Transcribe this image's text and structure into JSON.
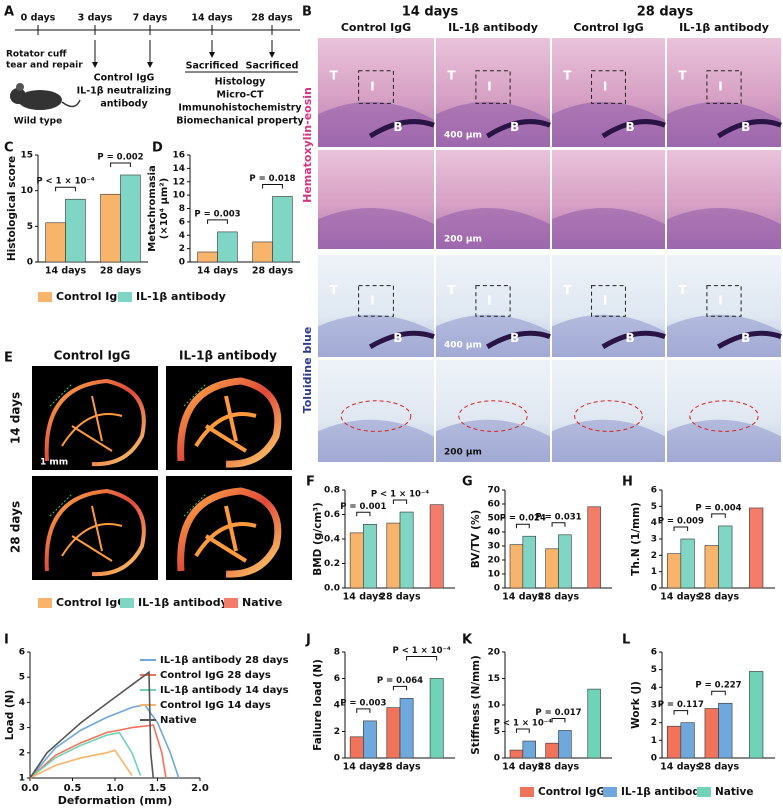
{
  "figure": {
    "panels": [
      "A",
      "B",
      "C",
      "D",
      "E",
      "F",
      "G",
      "H",
      "I",
      "J",
      "K",
      "L"
    ],
    "timeline": {
      "days": [
        "0 days",
        "3 days",
        "7 days",
        "14 days",
        "28 days"
      ],
      "surgery": [
        "Rotator cuff",
        "tear and repair"
      ],
      "mouse": "Wild type",
      "treatment": [
        "Control IgG",
        "IL-1β neutralizing",
        "antibody"
      ],
      "sacrificed": [
        "Sacrificed",
        "Sacrificed"
      ],
      "analyses": [
        "Histology",
        "Micro-CT",
        "Immunohistochemistry",
        "Biomechanical property"
      ]
    },
    "histology": {
      "timepoints": [
        "14 days",
        "28 days"
      ],
      "groups": [
        "Control IgG",
        "IL-1β antibody",
        "Control IgG",
        "IL-1β antibody"
      ],
      "stains": [
        "Hematoxylin-eosin",
        "Toluidine blue"
      ],
      "tissue_labels": [
        "T",
        "I",
        "B"
      ],
      "scale_low": "400 μm",
      "scale_high": "200 μm"
    },
    "microct": {
      "groups": [
        "Control IgG",
        "IL-1β antibody"
      ],
      "timepoints": [
        "14 days",
        "28 days"
      ],
      "scale": "1 mm"
    }
  },
  "chart_data": [
    {
      "type": "bar",
      "ylabel": "Histological score",
      "categories": [
        "14 days",
        "28 days"
      ],
      "series": [
        {
          "name": "Control IgG",
          "color": "#f9b46b",
          "values": [
            5.5,
            9.5
          ]
        },
        {
          "name": "IL-1β antibody",
          "color": "#7fd6c4",
          "values": [
            8.8,
            12.2
          ]
        }
      ],
      "ylim": [
        0,
        15
      ],
      "yticks": [
        0,
        5,
        10,
        15
      ],
      "annotations": [
        "P < 1 × 10⁻⁴",
        "P = 0.002"
      ]
    },
    {
      "type": "bar",
      "ylabel": [
        "Metachromasia",
        "(×10⁴ μm²)"
      ],
      "categories": [
        "14 days",
        "28 days"
      ],
      "series": [
        {
          "name": "Control IgG",
          "color": "#f9b46b",
          "values": [
            1.5,
            3
          ]
        },
        {
          "name": "IL-1β antibody",
          "color": "#7fd6c4",
          "values": [
            4.5,
            9.8
          ]
        }
      ],
      "ylim": [
        0,
        16
      ],
      "yticks": [
        0,
        2,
        4,
        6,
        8,
        10,
        12,
        14,
        16
      ],
      "annotations": [
        "P = 0.003",
        "P = 0.018"
      ]
    },
    {
      "type": "bar",
      "ylabel": "BMD (g/cm³)",
      "categories": [
        "14 days",
        "28 days",
        null
      ],
      "series": [
        {
          "name": "Control IgG",
          "color": "#f9b46b",
          "values": [
            0.45,
            0.53,
            null
          ]
        },
        {
          "name": "IL-1β antibody",
          "color": "#7fd6c4",
          "values": [
            0.52,
            0.62,
            null
          ]
        },
        {
          "name": "Native",
          "color": "#f47c6a",
          "values": [
            null,
            null,
            0.68
          ]
        }
      ],
      "ylim": [
        0,
        0.8
      ],
      "yticks": [
        {
          "value": 0,
          "label": "0.0"
        },
        0.2,
        0.4,
        0.6,
        0.8
      ],
      "annotations": [
        "P = 0.001",
        "P < 1 × 10⁻⁴"
      ]
    },
    {
      "type": "bar",
      "ylabel": "BV/TV (%)",
      "categories": [
        "14 days",
        "28 days",
        null
      ],
      "series": [
        {
          "name": "Control IgG",
          "color": "#f9b46b",
          "values": [
            31,
            28,
            null
          ]
        },
        {
          "name": "IL-1β antibody",
          "color": "#7fd6c4",
          "values": [
            37,
            38,
            null
          ]
        },
        {
          "name": "Native",
          "color": "#f47c6a",
          "values": [
            null,
            null,
            58
          ]
        }
      ],
      "ylim": [
        0,
        70
      ],
      "yticks": [
        0,
        10,
        20,
        30,
        40,
        50,
        60,
        70
      ],
      "annotations": [
        "P = 0.024",
        "P = 0.031"
      ]
    },
    {
      "type": "bar",
      "ylabel": "Th.N (1/mm)",
      "categories": [
        "14 days",
        "28 days",
        null
      ],
      "series": [
        {
          "name": "Control IgG",
          "color": "#f9b46b",
          "values": [
            2.1,
            2.6,
            null
          ]
        },
        {
          "name": "IL-1β antibody",
          "color": "#7fd6c4",
          "values": [
            3.0,
            3.8,
            null
          ]
        },
        {
          "name": "Native",
          "color": "#f47c6a",
          "values": [
            null,
            null,
            4.9
          ]
        }
      ],
      "ylim": [
        0,
        6
      ],
      "yticks": [
        0,
        1,
        2,
        3,
        4,
        5,
        6
      ],
      "annotations": [
        "P = 0.009",
        "P = 0.004"
      ]
    },
    {
      "type": "line",
      "ylabel": "Load (N)",
      "xlabel": "Deformation (mm)",
      "series": [
        {
          "name": "IL-1β antibody 28 days",
          "color": "#6fa8dc",
          "x": [
            0,
            0.3,
            0.6,
            0.9,
            1.2,
            1.35,
            1.5,
            1.65,
            1.75
          ],
          "values": [
            1,
            2.2,
            2.9,
            3.4,
            3.8,
            3.9,
            3.2,
            2,
            1
          ]
        },
        {
          "name": "Control IgG 28 days",
          "color": "#f0735a",
          "x": [
            0,
            0.3,
            0.6,
            0.9,
            1.2,
            1.45,
            1.55,
            1.6
          ],
          "values": [
            1,
            1.9,
            2.4,
            2.8,
            3.0,
            3.1,
            2,
            1
          ]
        },
        {
          "name": "IL-1β antibody 14 days",
          "color": "#6fd3b8",
          "x": [
            0,
            0.3,
            0.6,
            0.9,
            1.05,
            1.2,
            1.3
          ],
          "values": [
            1,
            1.8,
            2.3,
            2.7,
            2.8,
            2,
            1.1
          ]
        },
        {
          "name": "Control IgG 14 days",
          "color": "#f9b46b",
          "x": [
            0,
            0.3,
            0.6,
            0.9,
            1.0,
            1.1,
            1.2
          ],
          "values": [
            1,
            1.5,
            1.8,
            2.0,
            2.1,
            1.6,
            1.1
          ]
        },
        {
          "name": "Native",
          "color": "#555555",
          "x": [
            0,
            0.2,
            0.4,
            0.6,
            0.8,
            1.0,
            1.2,
            1.4,
            1.42,
            1.45
          ],
          "values": [
            1,
            2,
            2.6,
            3.2,
            3.7,
            4.2,
            4.7,
            5.2,
            2,
            1
          ]
        }
      ],
      "xlim": [
        0,
        2
      ],
      "xticks": [
        {
          "value": 0,
          "label": "0.0"
        },
        0.5,
        {
          "value": 1,
          "label": "1.0"
        },
        1.5,
        {
          "value": 2,
          "label": "2.0"
        }
      ],
      "ylim": [
        1,
        6
      ],
      "yticks": [
        1,
        2,
        3,
        4,
        5,
        6
      ]
    },
    {
      "type": "bar",
      "ylabel": "Failure load (N)",
      "categories": [
        "14 days",
        "28 days",
        null
      ],
      "series": [
        {
          "name": "Control IgG",
          "color": "#f0735a",
          "values": [
            1.6,
            3.8,
            null
          ]
        },
        {
          "name": "IL-1β antibody",
          "color": "#6fa8dc",
          "values": [
            2.8,
            4.5,
            null
          ]
        },
        {
          "name": "Native",
          "color": "#6fd3b8",
          "values": [
            null,
            null,
            6.0
          ]
        }
      ],
      "ylim": [
        0,
        8
      ],
      "yticks": [
        0,
        2,
        4,
        6,
        8
      ],
      "annotations": [
        "P = 0.003",
        "P = 0.064",
        "P < 1 × 10⁻⁴"
      ]
    },
    {
      "type": "bar",
      "ylabel": "Stiffness (N/mm)",
      "categories": [
        "14 days",
        "28 days",
        null
      ],
      "series": [
        {
          "name": "Control IgG",
          "color": "#f0735a",
          "values": [
            1.5,
            2.8,
            null
          ]
        },
        {
          "name": "IL-1β antibody",
          "color": "#6fa8dc",
          "values": [
            3.2,
            5.2,
            null
          ]
        },
        {
          "name": "Native",
          "color": "#6fd3b8",
          "values": [
            null,
            null,
            13
          ]
        }
      ],
      "ylim": [
        0,
        20
      ],
      "yticks": [
        0,
        5,
        10,
        15,
        20
      ],
      "annotations": [
        "P < 1 × 10⁻⁴",
        "P = 0.017"
      ]
    },
    {
      "type": "bar",
      "ylabel": "Work (J)",
      "categories": [
        "14 days",
        "28 days",
        null
      ],
      "series": [
        {
          "name": "Control IgG",
          "color": "#f0735a",
          "values": [
            1.8,
            2.8,
            null
          ]
        },
        {
          "name": "IL-1β antibody",
          "color": "#6fa8dc",
          "values": [
            2.0,
            3.1,
            null
          ]
        },
        {
          "name": "Native",
          "color": "#6fd3b8",
          "values": [
            null,
            null,
            4.9
          ]
        }
      ],
      "ylim": [
        0,
        6
      ],
      "yticks": [
        0,
        1,
        2,
        3,
        4,
        5,
        6
      ],
      "annotations": [
        "P = 0.117",
        "P = 0.227"
      ]
    }
  ]
}
